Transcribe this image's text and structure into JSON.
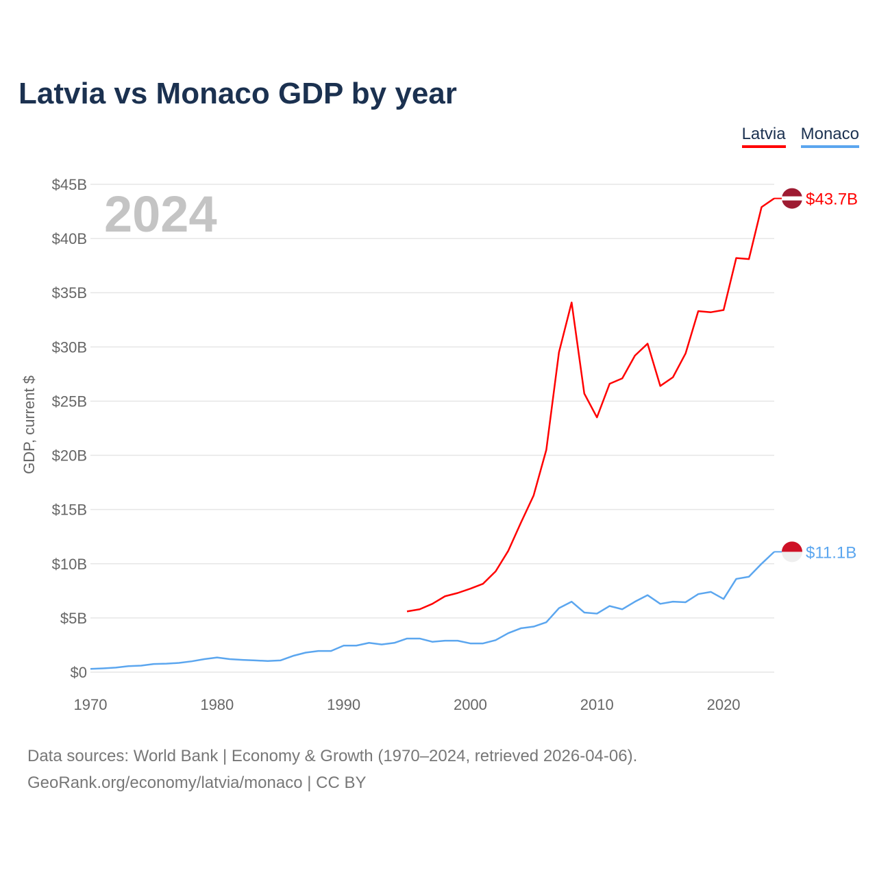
{
  "chart_data": {
    "type": "line",
    "title": "Latvia vs Monaco GDP by year",
    "ylabel": "GDP, current $",
    "xlabel": "",
    "xlim": [
      1970,
      2024
    ],
    "ylim": [
      0,
      45
    ],
    "year_label": "2024",
    "x_ticks": [
      "1970",
      "1980",
      "1990",
      "2000",
      "2010",
      "2020"
    ],
    "x_tick_values": [
      1970,
      1980,
      1990,
      2000,
      2010,
      2020
    ],
    "y_ticks": [
      "$0",
      "$5B",
      "$10B",
      "$15B",
      "$20B",
      "$25B",
      "$30B",
      "$35B",
      "$40B",
      "$45B"
    ],
    "y_tick_values": [
      0,
      5,
      10,
      15,
      20,
      25,
      30,
      35,
      40,
      45
    ],
    "grid": true,
    "legend_position": "top-right",
    "series": [
      {
        "name": "Latvia",
        "color": "#ff0000",
        "end_label": "$43.7B",
        "x": [
          1995,
          1996,
          1997,
          1998,
          1999,
          2000,
          2001,
          2002,
          2003,
          2004,
          2005,
          2006,
          2007,
          2008,
          2009,
          2010,
          2011,
          2012,
          2013,
          2014,
          2015,
          2016,
          2017,
          2018,
          2019,
          2020,
          2021,
          2022,
          2023,
          2024
        ],
        "values": [
          5.6,
          5.8,
          6.3,
          7.0,
          7.3,
          7.7,
          8.15,
          9.3,
          11.2,
          13.8,
          16.3,
          20.5,
          29.5,
          34.1,
          25.7,
          23.5,
          26.6,
          27.1,
          29.2,
          30.3,
          26.4,
          27.2,
          29.4,
          33.3,
          33.2,
          33.4,
          38.2,
          38.1,
          42.9,
          43.7
        ]
      },
      {
        "name": "Monaco",
        "color": "#5ba6ef",
        "end_label": "$11.1B",
        "x": [
          1970,
          1971,
          1972,
          1973,
          1974,
          1975,
          1976,
          1977,
          1978,
          1979,
          1980,
          1981,
          1982,
          1983,
          1984,
          1985,
          1986,
          1987,
          1988,
          1989,
          1990,
          1991,
          1992,
          1993,
          1994,
          1995,
          1996,
          1997,
          1998,
          1999,
          2000,
          2001,
          2002,
          2003,
          2004,
          2005,
          2006,
          2007,
          2008,
          2009,
          2010,
          2011,
          2012,
          2013,
          2014,
          2015,
          2016,
          2017,
          2018,
          2019,
          2020,
          2021,
          2022,
          2023,
          2024
        ],
        "values": [
          0.3,
          0.35,
          0.42,
          0.55,
          0.6,
          0.75,
          0.78,
          0.85,
          1.0,
          1.2,
          1.35,
          1.2,
          1.13,
          1.08,
          1.03,
          1.08,
          1.5,
          1.8,
          1.95,
          1.95,
          2.45,
          2.45,
          2.7,
          2.55,
          2.7,
          3.1,
          3.1,
          2.8,
          2.9,
          2.9,
          2.65,
          2.65,
          2.95,
          3.6,
          4.05,
          4.2,
          4.6,
          5.9,
          6.5,
          5.5,
          5.4,
          6.1,
          5.8,
          6.5,
          7.1,
          6.3,
          6.5,
          6.45,
          7.2,
          7.4,
          6.75,
          8.6,
          8.8,
          10.0,
          11.1
        ]
      }
    ]
  },
  "footer": {
    "line1": "Data sources: World Bank | Economy & Growth (1970–2024, retrieved 2026-04-06).",
    "line2": "GeoRank.org/economy/latvia/monaco | CC BY"
  }
}
